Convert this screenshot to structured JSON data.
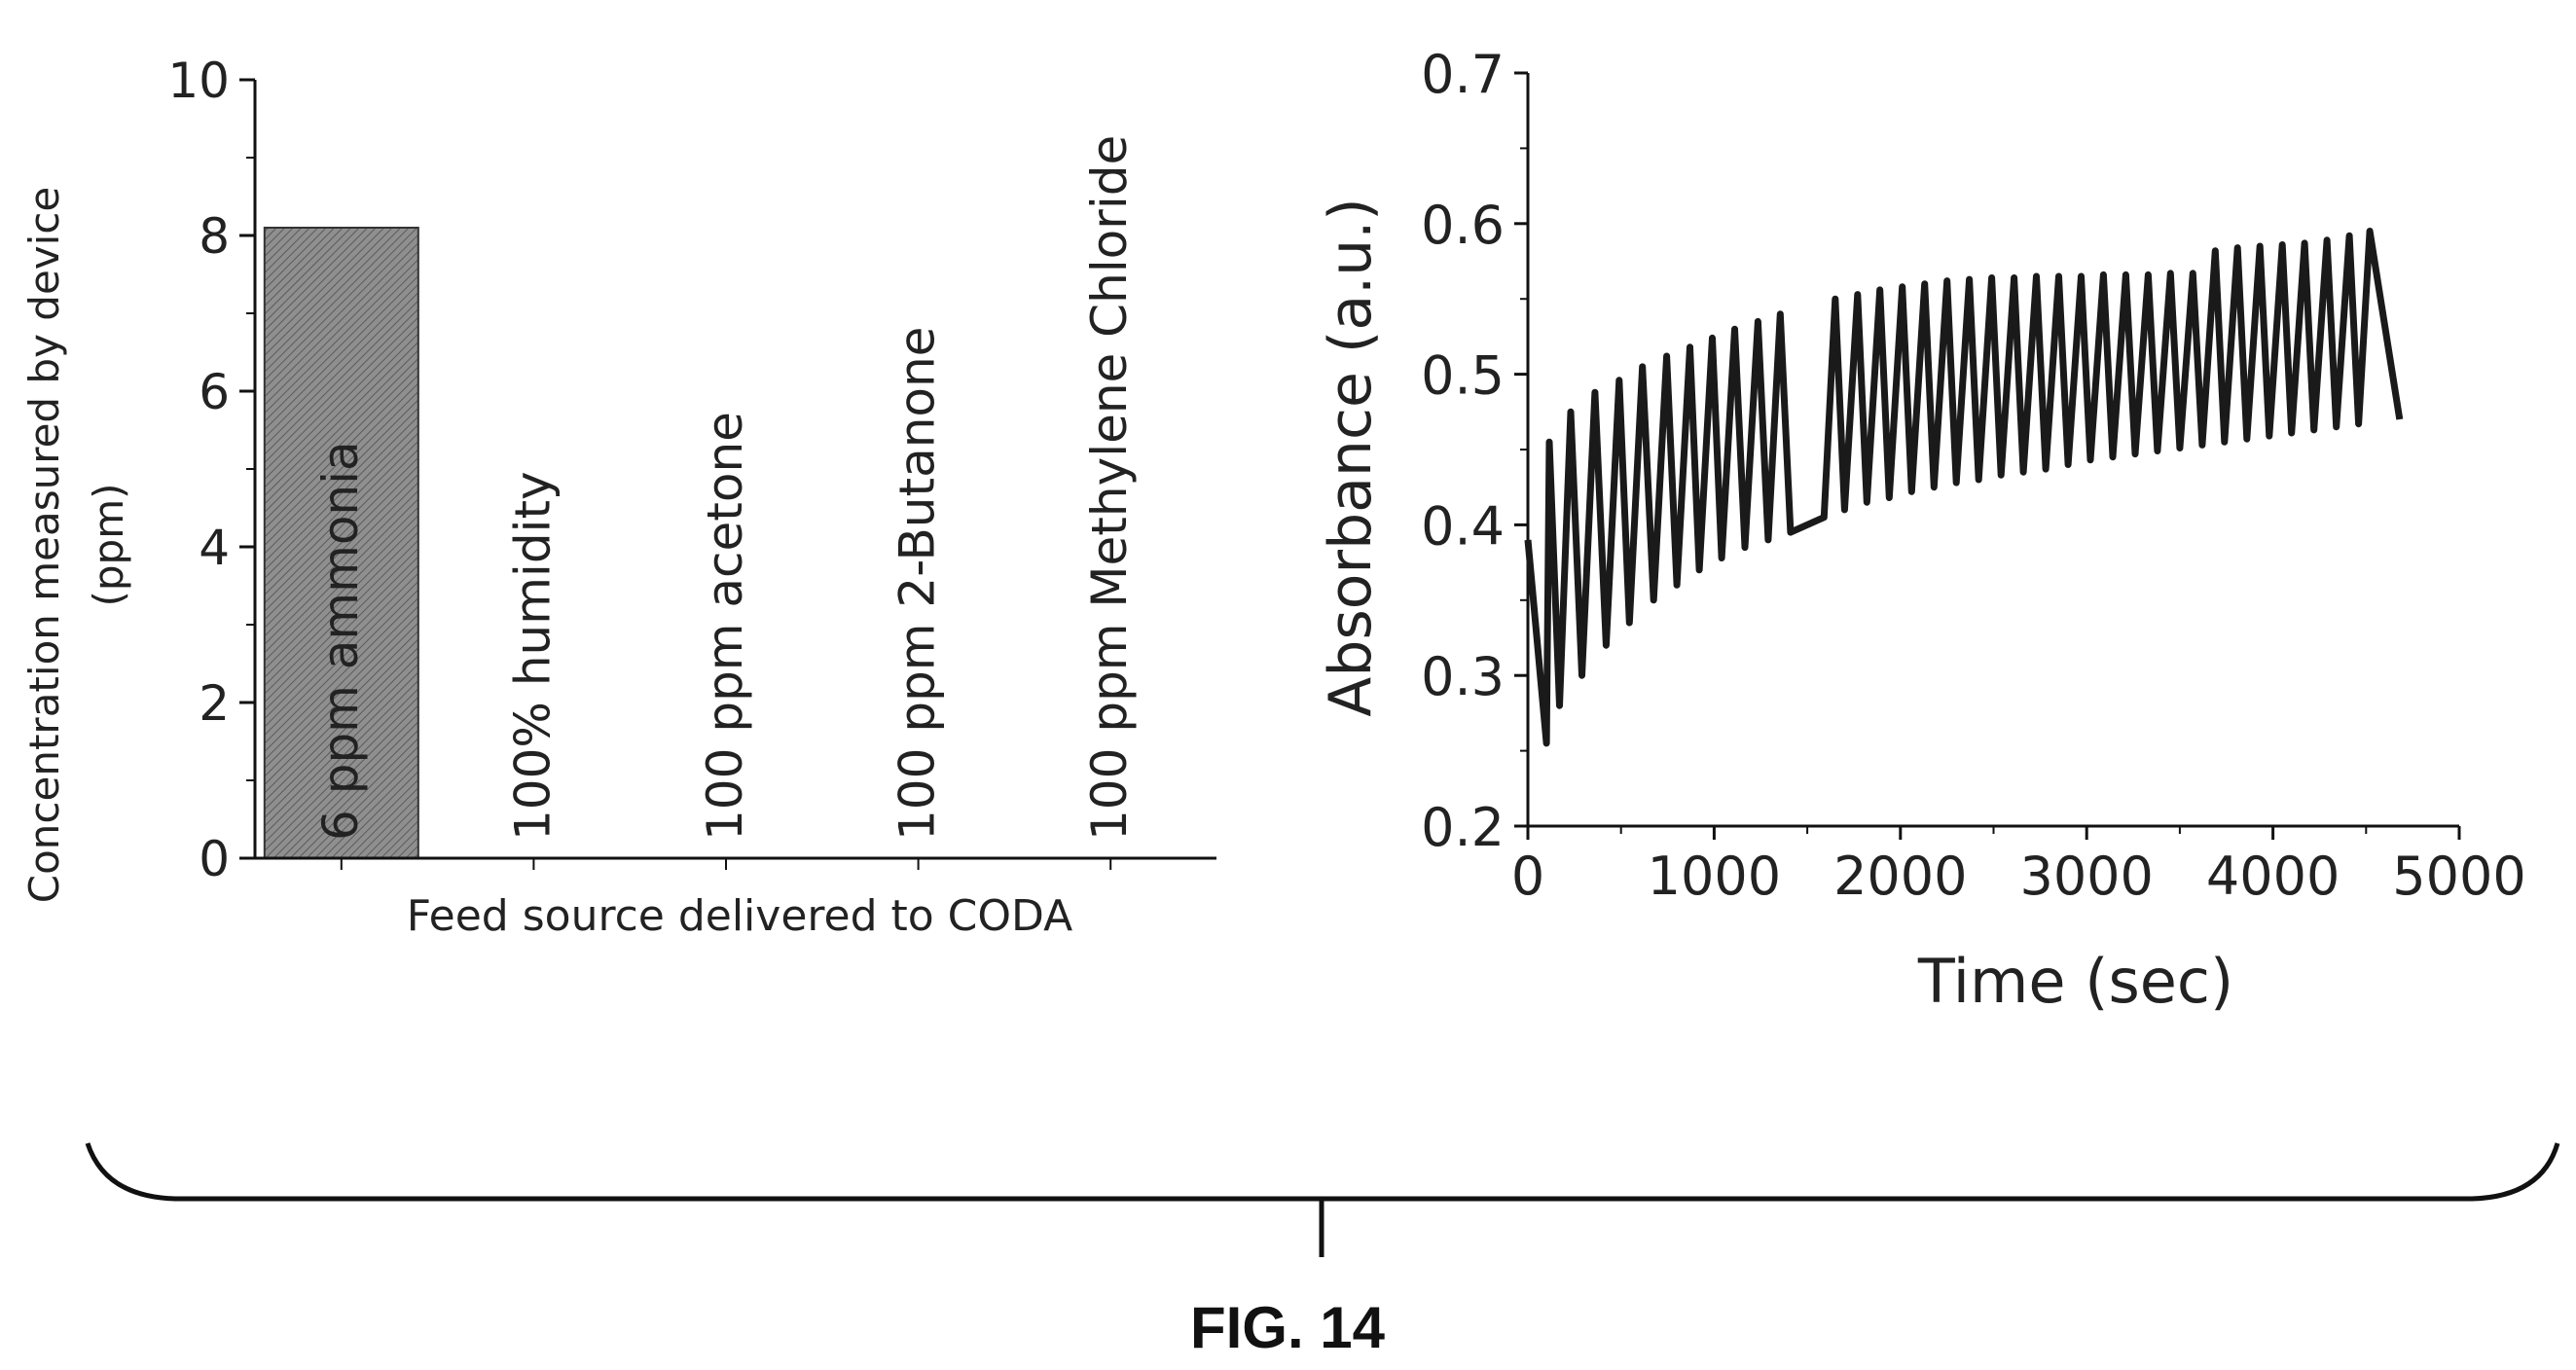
{
  "figure_label": "FIG. 14",
  "colors": {
    "ink": "#111111",
    "bar_fill": "#8f8f8f",
    "bar_hatch": "#555555",
    "background": "#ffffff"
  },
  "chart_data": [
    {
      "type": "bar",
      "title": "",
      "categories": [
        "6 ppm ammonia",
        "100% humidity",
        "100 ppm acetone",
        "100 ppm 2-Butanone",
        "100 ppm Methylene Chloride"
      ],
      "values": [
        8.1,
        0,
        0,
        0,
        0
      ],
      "xlabel": "Feed source delivered to CODA",
      "ylabel_line1": "Concentration measured by device",
      "ylabel_line2": "(ppm)",
      "ylim": [
        0,
        10
      ],
      "yticks": [
        "0",
        "2",
        "4",
        "6",
        "8",
        "10"
      ],
      "grid": false,
      "legend": "none",
      "category_labels_inside_plot": true
    },
    {
      "type": "line",
      "title": "",
      "xlabel": "Time (sec)",
      "ylabel": "Absorbance (a.u.)",
      "xlim": [
        0,
        5000
      ],
      "ylim": [
        0.2,
        0.7
      ],
      "xticks": [
        "0",
        "1000",
        "2000",
        "3000",
        "4000",
        "5000"
      ],
      "yticks": [
        "0.2",
        "0.3",
        "0.4",
        "0.5",
        "0.6",
        "0.7"
      ],
      "grid": false,
      "legend": "none",
      "series": [
        {
          "peaks_x": [
            115,
            230,
            360,
            490,
            615,
            745,
            870,
            990,
            1110,
            1235,
            1355,
            1650,
            1770,
            1890,
            2010,
            2130,
            2250,
            2370,
            2490,
            2610,
            2730,
            2850,
            2970,
            3090,
            3210,
            3330,
            3450,
            3570,
            3690,
            3810,
            3930,
            4050,
            4170,
            4290,
            4410,
            4520
          ],
          "peaks_y": [
            0.455,
            0.475,
            0.488,
            0.496,
            0.505,
            0.512,
            0.518,
            0.524,
            0.53,
            0.535,
            0.54,
            0.55,
            0.553,
            0.556,
            0.558,
            0.56,
            0.562,
            0.563,
            0.564,
            0.564,
            0.565,
            0.565,
            0.565,
            0.566,
            0.566,
            0.566,
            0.567,
            0.567,
            0.582,
            0.584,
            0.585,
            0.586,
            0.587,
            0.589,
            0.592,
            0.595
          ],
          "troughs_x": [
            0,
            100,
            170,
            290,
            420,
            545,
            675,
            800,
            920,
            1040,
            1165,
            1290,
            1410,
            1590,
            1700,
            1820,
            1940,
            2060,
            2180,
            2300,
            2420,
            2540,
            2660,
            2780,
            2900,
            3020,
            3140,
            3260,
            3380,
            3500,
            3620,
            3740,
            3860,
            3980,
            4100,
            4220,
            4340,
            4460,
            4680
          ],
          "troughs_y": [
            0.39,
            0.255,
            0.28,
            0.3,
            0.32,
            0.335,
            0.35,
            0.36,
            0.37,
            0.378,
            0.385,
            0.39,
            0.395,
            0.405,
            0.41,
            0.415,
            0.418,
            0.422,
            0.425,
            0.428,
            0.43,
            0.433,
            0.435,
            0.437,
            0.44,
            0.443,
            0.445,
            0.447,
            0.449,
            0.451,
            0.453,
            0.455,
            0.457,
            0.459,
            0.461,
            0.463,
            0.465,
            0.467,
            0.47
          ]
        }
      ]
    }
  ]
}
